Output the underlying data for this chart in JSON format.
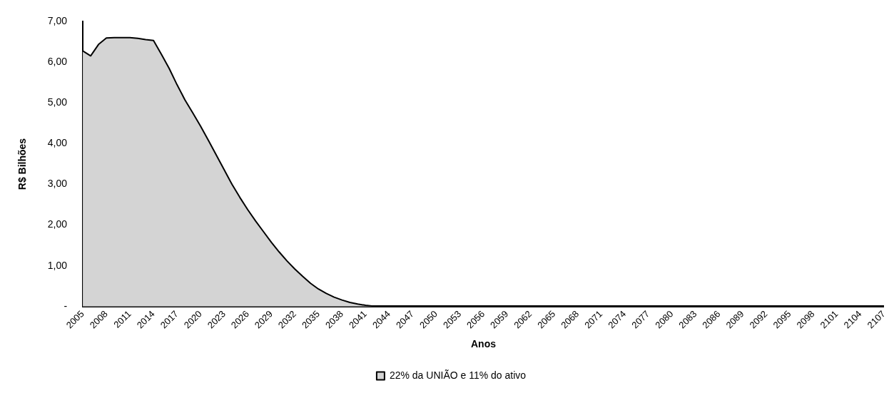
{
  "chart_data": {
    "type": "area",
    "xlabel": "Anos",
    "ylabel": "R$ Bilhões",
    "categories": [
      "2005",
      null,
      null,
      "2008",
      null,
      null,
      "2011",
      null,
      null,
      "2014",
      null,
      null,
      "2017",
      null,
      null,
      "2020",
      null,
      null,
      "2023",
      null,
      null,
      "2026",
      null,
      null,
      "2029",
      null,
      null,
      "2032",
      null,
      null,
      "2035",
      null,
      null,
      "2038",
      null,
      null,
      "2041",
      null,
      null,
      "2044",
      null,
      null,
      "2047",
      null,
      null,
      "2050",
      null,
      null,
      "2053",
      null,
      null,
      "2056",
      null,
      null,
      "2059",
      null,
      null,
      "2062",
      null,
      null,
      "2065",
      null,
      null,
      "2068",
      null,
      null,
      "2071",
      null,
      null,
      "2074",
      null,
      null,
      "2077",
      null,
      null,
      "2080",
      null,
      null,
      "2083",
      null,
      null,
      "2086",
      null,
      null,
      "2089",
      null,
      null,
      "2092",
      null,
      null,
      "2095",
      null,
      null,
      "2098",
      null,
      null,
      "2101",
      null,
      null,
      "2104",
      null,
      null,
      "2107"
    ],
    "series": [
      {
        "name": "22% da UNIÃO e 11% do ativo",
        "color": "#d4d4d4",
        "values": [
          6.28,
          6.16,
          6.44,
          6.6,
          6.61,
          6.61,
          6.61,
          6.59,
          6.56,
          6.54,
          6.2,
          5.85,
          5.45,
          5.08,
          4.76,
          4.43,
          4.08,
          3.72,
          3.36,
          3.0,
          2.68,
          2.38,
          2.1,
          1.84,
          1.58,
          1.34,
          1.12,
          0.92,
          0.74,
          0.57,
          0.43,
          0.32,
          0.23,
          0.16,
          0.1,
          0.06,
          0.03,
          0.01,
          0,
          0,
          0,
          0,
          0,
          0,
          0,
          0,
          0,
          0,
          0,
          0,
          0,
          0,
          0,
          0,
          0,
          0,
          0,
          0,
          0,
          0,
          0,
          0,
          0,
          0,
          0,
          0,
          0,
          0,
          0,
          0,
          0,
          0,
          0,
          0,
          0,
          0,
          0,
          0,
          0,
          0,
          0,
          0,
          0,
          0,
          0,
          0,
          0,
          0,
          0,
          0,
          0,
          0,
          0,
          0,
          0,
          0,
          0,
          0,
          0,
          0,
          0,
          0,
          0
        ]
      }
    ],
    "ylim": [
      0,
      7
    ],
    "yticks": [
      {
        "value": 0,
        "label": "-"
      },
      {
        "value": 1,
        "label": "1,00"
      },
      {
        "value": 2,
        "label": "2,00"
      },
      {
        "value": 3,
        "label": "3,00"
      },
      {
        "value": 4,
        "label": "4,00"
      },
      {
        "value": 5,
        "label": "5,00"
      },
      {
        "value": 6,
        "label": "6,00"
      },
      {
        "value": 7,
        "label": "7,00"
      }
    ],
    "grid": false,
    "legend": "bottom",
    "marker": "none",
    "line_style": "solid"
  }
}
